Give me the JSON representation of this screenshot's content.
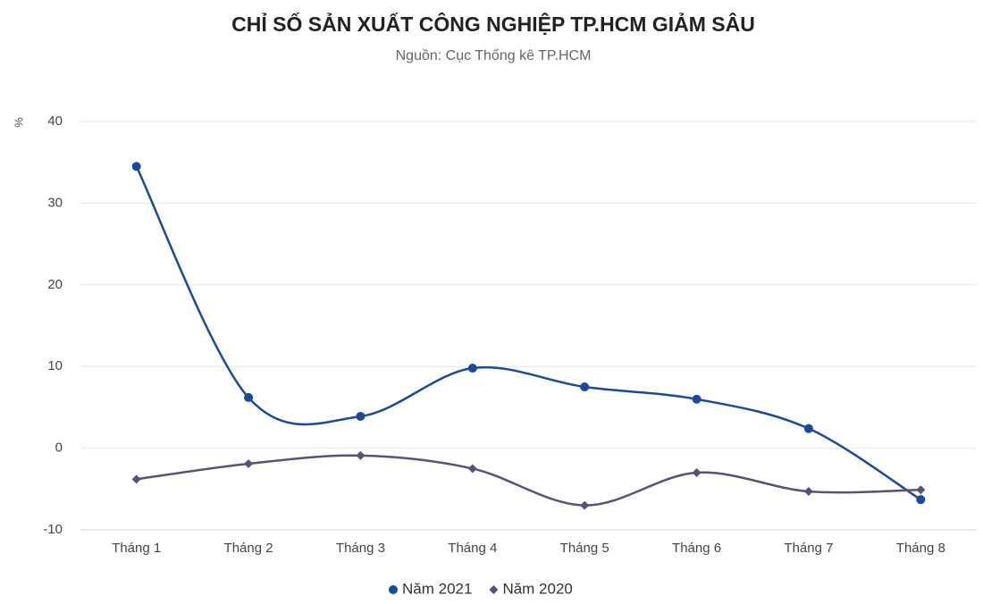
{
  "chart_data": {
    "type": "line",
    "title": "CHỈ SỐ SẢN XUẤT CÔNG NGHIỆP TP.HCM GIẢM SÂU",
    "subtitle": "Nguồn: Cục Thống kê TP.HCM",
    "y_label": "%",
    "categories": [
      "Tháng 1",
      "Tháng 2",
      "Tháng 3",
      "Tháng 4",
      "Tháng 5",
      "Tháng 6",
      "Tháng 7",
      "Tháng 8"
    ],
    "series": [
      {
        "name": "Năm 2021",
        "color": "#1a4b9b",
        "marker": "circle",
        "values": [
          34.5,
          6.2,
          3.9,
          9.8,
          7.5,
          6.0,
          2.4,
          -6.3
        ]
      },
      {
        "name": "Năm 2020",
        "color": "#575277",
        "marker": "diamond",
        "values": [
          -3.8,
          -1.9,
          -0.9,
          -2.5,
          -7.0,
          -3.0,
          -5.3,
          -5.1
        ]
      }
    ],
    "ylim": [
      -10,
      40
    ],
    "yticks": [
      -10,
      0,
      10,
      20,
      30,
      40
    ],
    "grid": true,
    "legend": "bottom"
  }
}
